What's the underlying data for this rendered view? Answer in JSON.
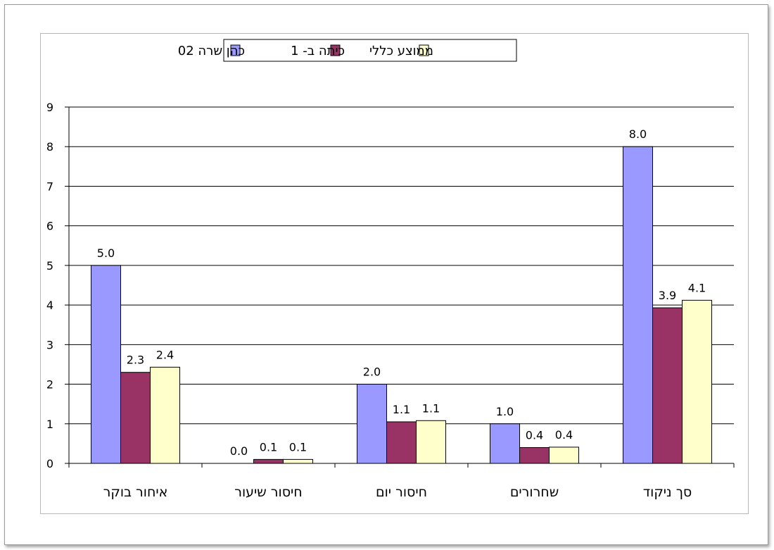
{
  "chart_data": {
    "type": "bar",
    "categories": [
      "איחור בוקר",
      "חיסור שיעור",
      "חיסור יום",
      "שחרורים",
      "סך ניקוד"
    ],
    "series": [
      {
        "name": "כהן שרה 02",
        "color": "#9999ff",
        "values": [
          5.0,
          0.0,
          2.0,
          1.0,
          8.0
        ],
        "labels": [
          "5.0",
          "0.0",
          "2.0",
          "1.0",
          "8.0"
        ]
      },
      {
        "name": "כיתה ב- 1",
        "color": "#993366",
        "values": [
          2.3,
          0.1,
          1.05,
          0.4,
          3.93
        ],
        "labels": [
          "2.3",
          "0.1",
          "1.1",
          "0.4",
          "3.9"
        ]
      },
      {
        "name": "ממוצע כללי",
        "color": "#ffffcc",
        "values": [
          2.43,
          0.1,
          1.08,
          0.41,
          4.12
        ],
        "labels": [
          "2.4",
          "0.1",
          "1.1",
          "0.4",
          "4.1"
        ]
      }
    ],
    "yticks": [
      "0",
      "1",
      "2",
      "3",
      "4",
      "5",
      "6",
      "7",
      "8",
      "9"
    ],
    "ylim": [
      0,
      9
    ],
    "grid": true,
    "legend_position": "top-center"
  }
}
